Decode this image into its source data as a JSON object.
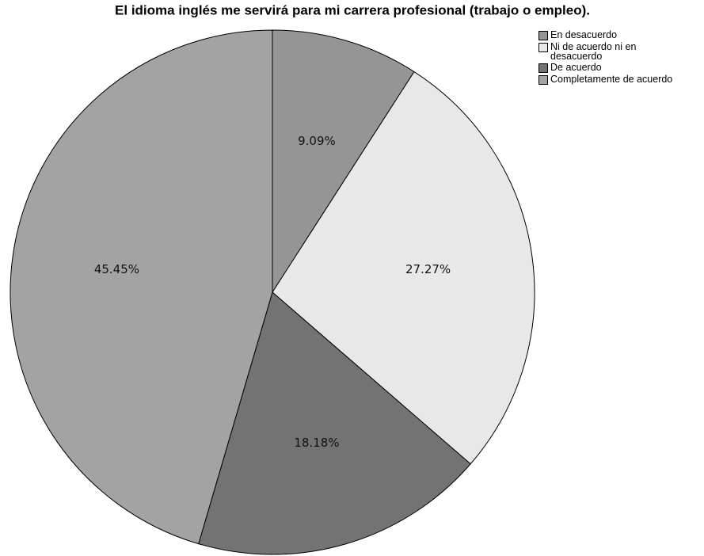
{
  "chart_data": {
    "type": "pie",
    "title": "El idioma inglés me servirá para mi carrera profesional (trabajo o empleo).",
    "categories": [
      "En desacuerdo",
      "Ni de acuerdo ni en desacuerdo",
      "De acuerdo",
      "Completamente de acuerdo"
    ],
    "values": [
      9.09,
      27.27,
      18.18,
      45.45
    ],
    "value_labels": [
      "9.09%",
      "27.27%",
      "18.18%",
      "45.45%"
    ],
    "colors": [
      "#959595",
      "#e8e8e8",
      "#737373",
      "#a3a3a3"
    ],
    "legend": "top-right"
  }
}
